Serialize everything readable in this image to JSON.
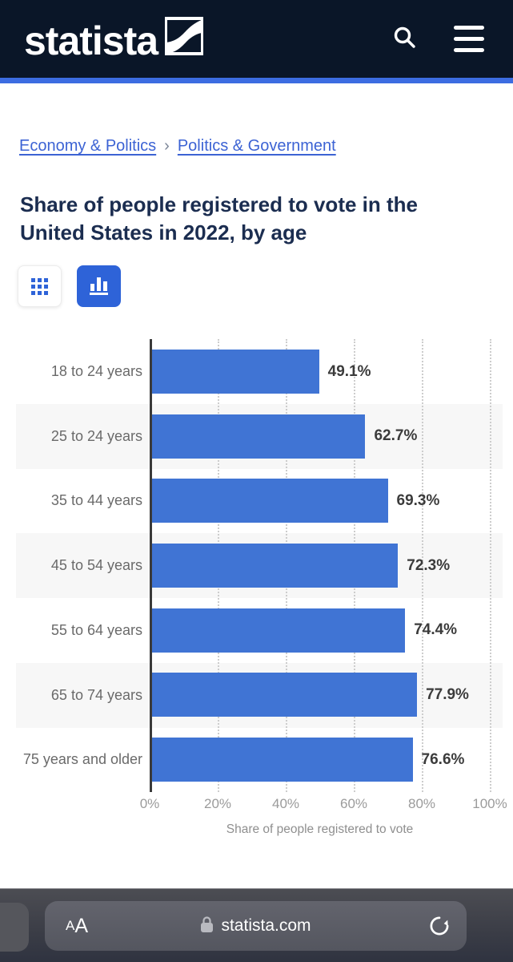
{
  "header": {
    "logo_text": "statista"
  },
  "breadcrumb": {
    "items": [
      {
        "label": "Economy & Politics"
      },
      {
        "label": "Politics & Government"
      }
    ],
    "separator": "›"
  },
  "page": {
    "title": "Share of people registered to vote in the United States in 2022, by age"
  },
  "chart_data": {
    "type": "bar",
    "orientation": "horizontal",
    "categories": [
      "18 to 24 years",
      "25 to 24 years",
      "35 to 44 years",
      "45 to 54 years",
      "55 to 64 years",
      "65 to 74 years",
      "75 years and older"
    ],
    "values": [
      49.1,
      62.7,
      69.3,
      72.3,
      74.4,
      77.9,
      76.6
    ],
    "value_labels": [
      "49.1%",
      "62.7%",
      "69.3%",
      "72.3%",
      "74.4%",
      "77.9%",
      "76.6%"
    ],
    "x_ticks": [
      "0%",
      "20%",
      "40%",
      "60%",
      "80%",
      "100%"
    ],
    "xlim": [
      0,
      100
    ],
    "xlabel": "Share of people registered to vote",
    "grid": true,
    "legend": false,
    "bar_color": "#4074d4",
    "alt_band_color": "#f7f7f7"
  },
  "browser": {
    "reader_small": "A",
    "reader_big": "A",
    "url": "statista.com"
  },
  "colors": {
    "header_bg": "#0a1628",
    "accent_blue": "#3c6ce1",
    "link_blue": "#3c63d4",
    "title_navy": "#1b2d50",
    "active_button_blue": "#2e63d8"
  }
}
